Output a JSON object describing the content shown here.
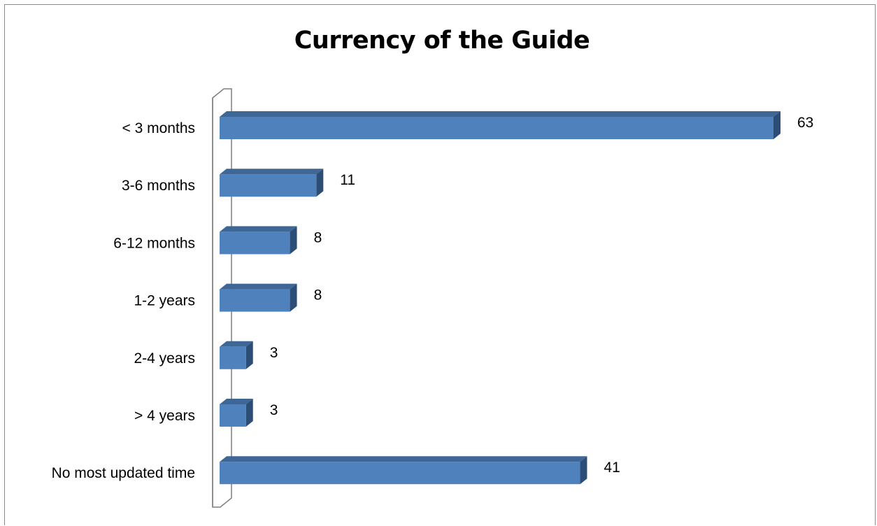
{
  "chart_data": {
    "type": "bar",
    "orientation": "horizontal",
    "title": "Currency of the Guide",
    "categories": [
      "< 3 months",
      "3-6 months",
      "6-12 months",
      "1-2 years",
      "2-4 years",
      "> 4 years",
      "No most updated time"
    ],
    "values": [
      63,
      11,
      8,
      8,
      3,
      3,
      41
    ],
    "xlim": [
      0,
      63
    ],
    "grid": false,
    "legend": "none",
    "data_labels": true,
    "style": "3d-clustered-bar"
  },
  "colors": {
    "bar_front": "#4f81bd",
    "bar_top": "#3f6796",
    "bar_side": "#2c4d75",
    "wall_stroke": "#7f7f7f"
  }
}
